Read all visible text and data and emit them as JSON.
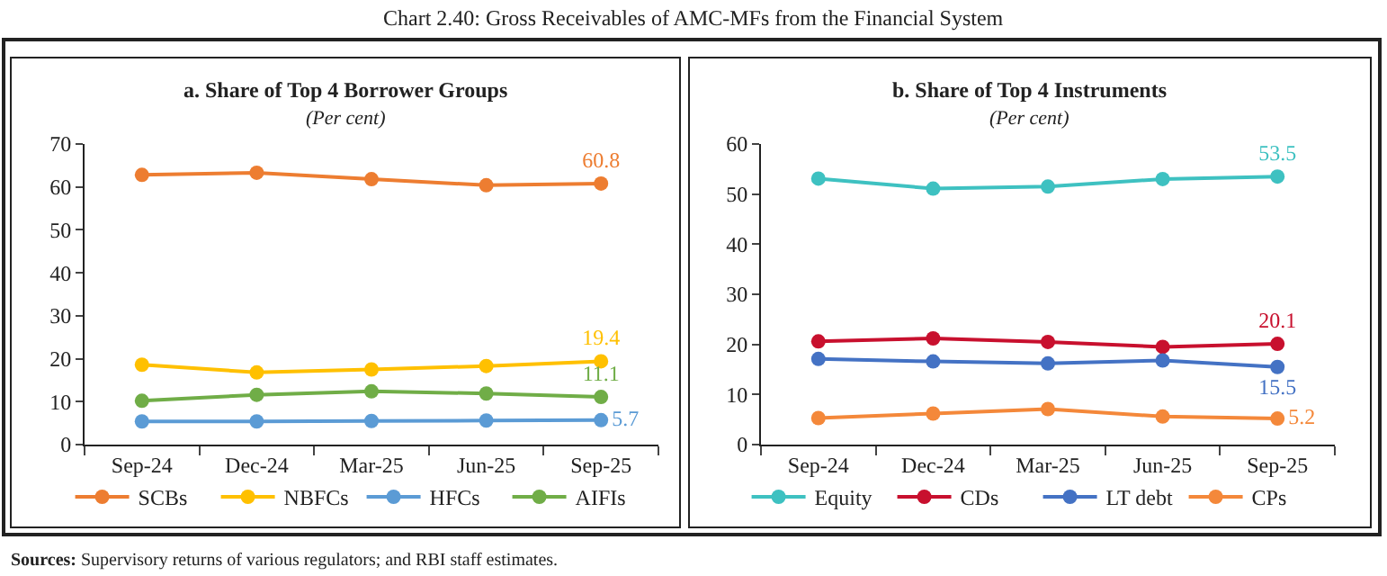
{
  "chart_data": [
    {
      "type": "line",
      "title": "a. Share of Top 4 Borrower Groups",
      "subtitle": "(Per cent)",
      "annotations": [
        "Chart 2.40: Gross Receivables of AMC-MFs from the Financial System",
        "Sources: Supervisory returns of various regulators; and RBI staff estimates."
      ],
      "categories": [
        "Sep-24",
        "Dec-24",
        "Mar-25",
        "Jun-25",
        "Sep-25"
      ],
      "series": [
        {
          "name": "SCBs",
          "color": "#ed7d31",
          "values": [
            62.8,
            63.3,
            61.8,
            60.4,
            60.8
          ],
          "value_labels": [
            null,
            null,
            null,
            null,
            "60.8"
          ]
        },
        {
          "name": "NBFCs",
          "color": "#ffc000",
          "values": [
            18.6,
            16.8,
            17.5,
            18.3,
            19.4
          ],
          "value_labels": [
            null,
            null,
            null,
            null,
            "19.4"
          ]
        },
        {
          "name": "HFCs",
          "color": "#5b9bd5",
          "values": [
            5.4,
            5.4,
            5.5,
            5.6,
            5.7
          ],
          "value_labels": [
            null,
            null,
            null,
            null,
            "5.7"
          ]
        },
        {
          "name": "AIFIs",
          "color": "#70ad47",
          "values": [
            10.2,
            11.6,
            12.4,
            11.9,
            11.1
          ],
          "value_labels": [
            null,
            null,
            null,
            null,
            "11.1"
          ]
        }
      ],
      "ylim": [
        0,
        70
      ],
      "yticks": [
        0,
        10,
        20,
        30,
        40,
        50,
        60,
        70
      ],
      "grid": false,
      "legend": "bottom",
      "marker": "circle",
      "line_style": "solid"
    },
    {
      "type": "line",
      "title": "b. Share of Top 4 Instruments",
      "subtitle": "(Per cent)",
      "categories": [
        "Sep-24",
        "Dec-24",
        "Mar-25",
        "Jun-25",
        "Sep-25"
      ],
      "series": [
        {
          "name": "Equity",
          "color": "#3ec1c1",
          "values": [
            53.1,
            51.1,
            51.5,
            53.0,
            53.5
          ],
          "value_labels": [
            null,
            null,
            null,
            null,
            "53.5"
          ]
        },
        {
          "name": "CDs",
          "color": "#c8102e",
          "values": [
            20.6,
            21.2,
            20.5,
            19.5,
            20.1
          ],
          "value_labels": [
            null,
            null,
            null,
            null,
            "20.1"
          ]
        },
        {
          "name": "LT debt",
          "color": "#4472c4",
          "values": [
            17.1,
            16.6,
            16.2,
            16.8,
            15.5
          ],
          "value_labels": [
            null,
            null,
            null,
            null,
            "15.5"
          ]
        },
        {
          "name": "CPs",
          "color": "#f4883a",
          "values": [
            5.3,
            6.2,
            7.1,
            5.6,
            5.2
          ],
          "value_labels": [
            null,
            null,
            null,
            null,
            "5.2"
          ]
        }
      ],
      "ylim": [
        0,
        60
      ],
      "yticks": [
        0,
        10,
        20,
        30,
        40,
        50,
        60
      ],
      "grid": false,
      "legend": "bottom",
      "marker": "circle",
      "line_style": "solid"
    }
  ]
}
